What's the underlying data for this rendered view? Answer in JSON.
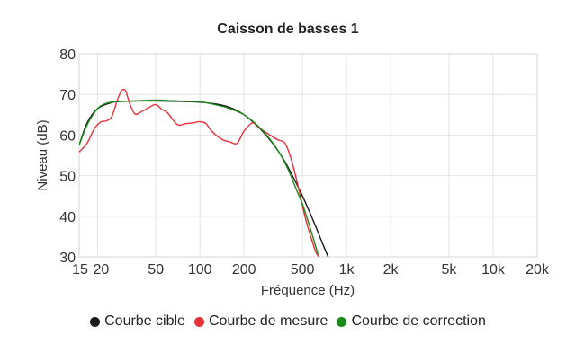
{
  "chart_data": {
    "type": "line",
    "title": "Caisson de basses 1",
    "xlabel": "Fréquence (Hz)",
    "ylabel": "Niveau (dB)",
    "xscale": "log",
    "xlim": [
      15,
      20000
    ],
    "ylim": [
      30,
      80
    ],
    "grid": true,
    "legend_position": "bottom",
    "x_ticks": [
      {
        "value": 15,
        "label": "15"
      },
      {
        "value": 20,
        "label": "20"
      },
      {
        "value": 50,
        "label": "50"
      },
      {
        "value": 100,
        "label": "100"
      },
      {
        "value": 200,
        "label": "200"
      },
      {
        "value": 500,
        "label": "500"
      },
      {
        "value": 1000,
        "label": "1k"
      },
      {
        "value": 2000,
        "label": "2k"
      },
      {
        "value": 5000,
        "label": "5k"
      },
      {
        "value": 10000,
        "label": "10k"
      },
      {
        "value": 20000,
        "label": "20k"
      }
    ],
    "y_ticks": [
      30,
      40,
      50,
      60,
      70,
      80
    ],
    "series": [
      {
        "name": "Courbe cible",
        "color": "#1a1a1a",
        "x": [
          15,
          17,
          20,
          25,
          30,
          40,
          50,
          70,
          100,
          130,
          160,
          200,
          250,
          300,
          350,
          400,
          500,
          600,
          700,
          750
        ],
        "y": [
          57.5,
          63,
          66.5,
          68,
          68.3,
          68.4,
          68.4,
          68.3,
          68.1,
          67.6,
          66.8,
          65,
          62,
          58.8,
          55.5,
          52,
          45,
          38.5,
          32.5,
          30
        ]
      },
      {
        "name": "Courbe de mesure",
        "color": "#e8303a",
        "x": [
          15,
          17,
          19,
          21,
          23,
          25,
          27,
          29,
          31,
          33,
          36,
          40,
          45,
          50,
          55,
          60,
          70,
          80,
          90,
          100,
          110,
          120,
          140,
          160,
          180,
          200,
          230,
          260,
          300,
          340,
          380,
          420,
          470,
          520,
          570,
          620,
          650
        ],
        "y": [
          55.8,
          58,
          61.5,
          63.2,
          63.5,
          64.5,
          68,
          70.8,
          71,
          68,
          65.2,
          65.8,
          66.8,
          67.5,
          66.3,
          65.5,
          62.6,
          62.8,
          63,
          63.3,
          62.8,
          61,
          59,
          58.3,
          58,
          61,
          63,
          61.5,
          60,
          58.8,
          58,
          54,
          47,
          40,
          35,
          31,
          30
        ]
      },
      {
        "name": "Courbe de correction",
        "color": "#1a8a1a",
        "x": [
          15,
          17,
          20,
          23,
          26,
          30,
          40,
          50,
          60,
          70,
          100,
          130,
          160,
          200,
          250,
          300,
          350,
          400,
          450,
          500,
          550,
          600,
          640
        ],
        "y": [
          57.5,
          62.5,
          66.5,
          67.8,
          68.2,
          68.3,
          68.5,
          68.6,
          68.5,
          68.4,
          68.2,
          67.4,
          66.5,
          65,
          62.2,
          59,
          55.5,
          51.5,
          47,
          43,
          38.5,
          34,
          30.5
        ]
      }
    ]
  }
}
